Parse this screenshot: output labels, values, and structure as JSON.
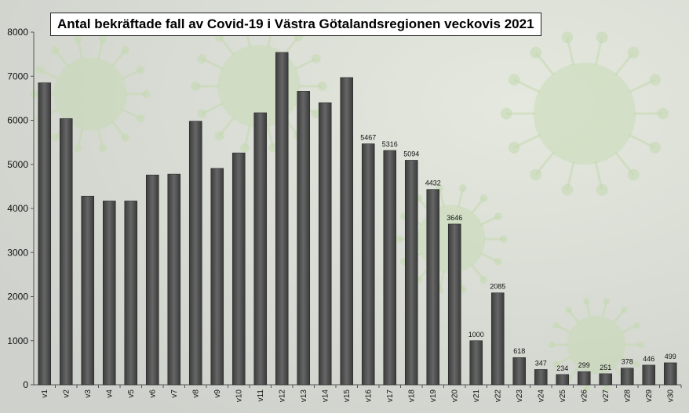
{
  "chart_data": {
    "type": "bar",
    "title": "Antal bekräftade fall av Covid-19 i Västra Götalandsregionen veckovis 2021",
    "xlabel": "",
    "ylabel": "",
    "ylim": [
      0,
      8000
    ],
    "yticks": [
      0,
      1000,
      2000,
      3000,
      4000,
      5000,
      6000,
      7000,
      8000
    ],
    "grid": false,
    "legend": "none",
    "bar_color": "#555555",
    "categories": [
      "v1",
      "v2",
      "v3",
      "v4",
      "v5",
      "v6",
      "v7",
      "v8",
      "v9",
      "v10",
      "v11",
      "v12",
      "v13",
      "v14",
      "v15",
      "v16",
      "v17",
      "v18",
      "v19",
      "v20",
      "v21",
      "v22",
      "v23",
      "v24",
      "v25",
      "v26",
      "v27",
      "v28",
      "v29",
      "v30"
    ],
    "values": [
      6850,
      6040,
      4280,
      4170,
      4170,
      4760,
      4780,
      5980,
      4910,
      5260,
      6170,
      7540,
      6660,
      6400,
      6970,
      5467,
      5316,
      5094,
      4432,
      3646,
      1000,
      2085,
      618,
      347,
      234,
      299,
      251,
      378,
      446,
      499
    ],
    "data_labels": [
      null,
      null,
      null,
      null,
      null,
      null,
      null,
      null,
      null,
      null,
      null,
      null,
      null,
      null,
      null,
      "5467",
      "5316",
      "5094",
      "4432",
      "3646",
      "1000",
      "2085",
      "618",
      "347",
      "234",
      "299",
      "251",
      "378",
      "446",
      "499"
    ]
  }
}
